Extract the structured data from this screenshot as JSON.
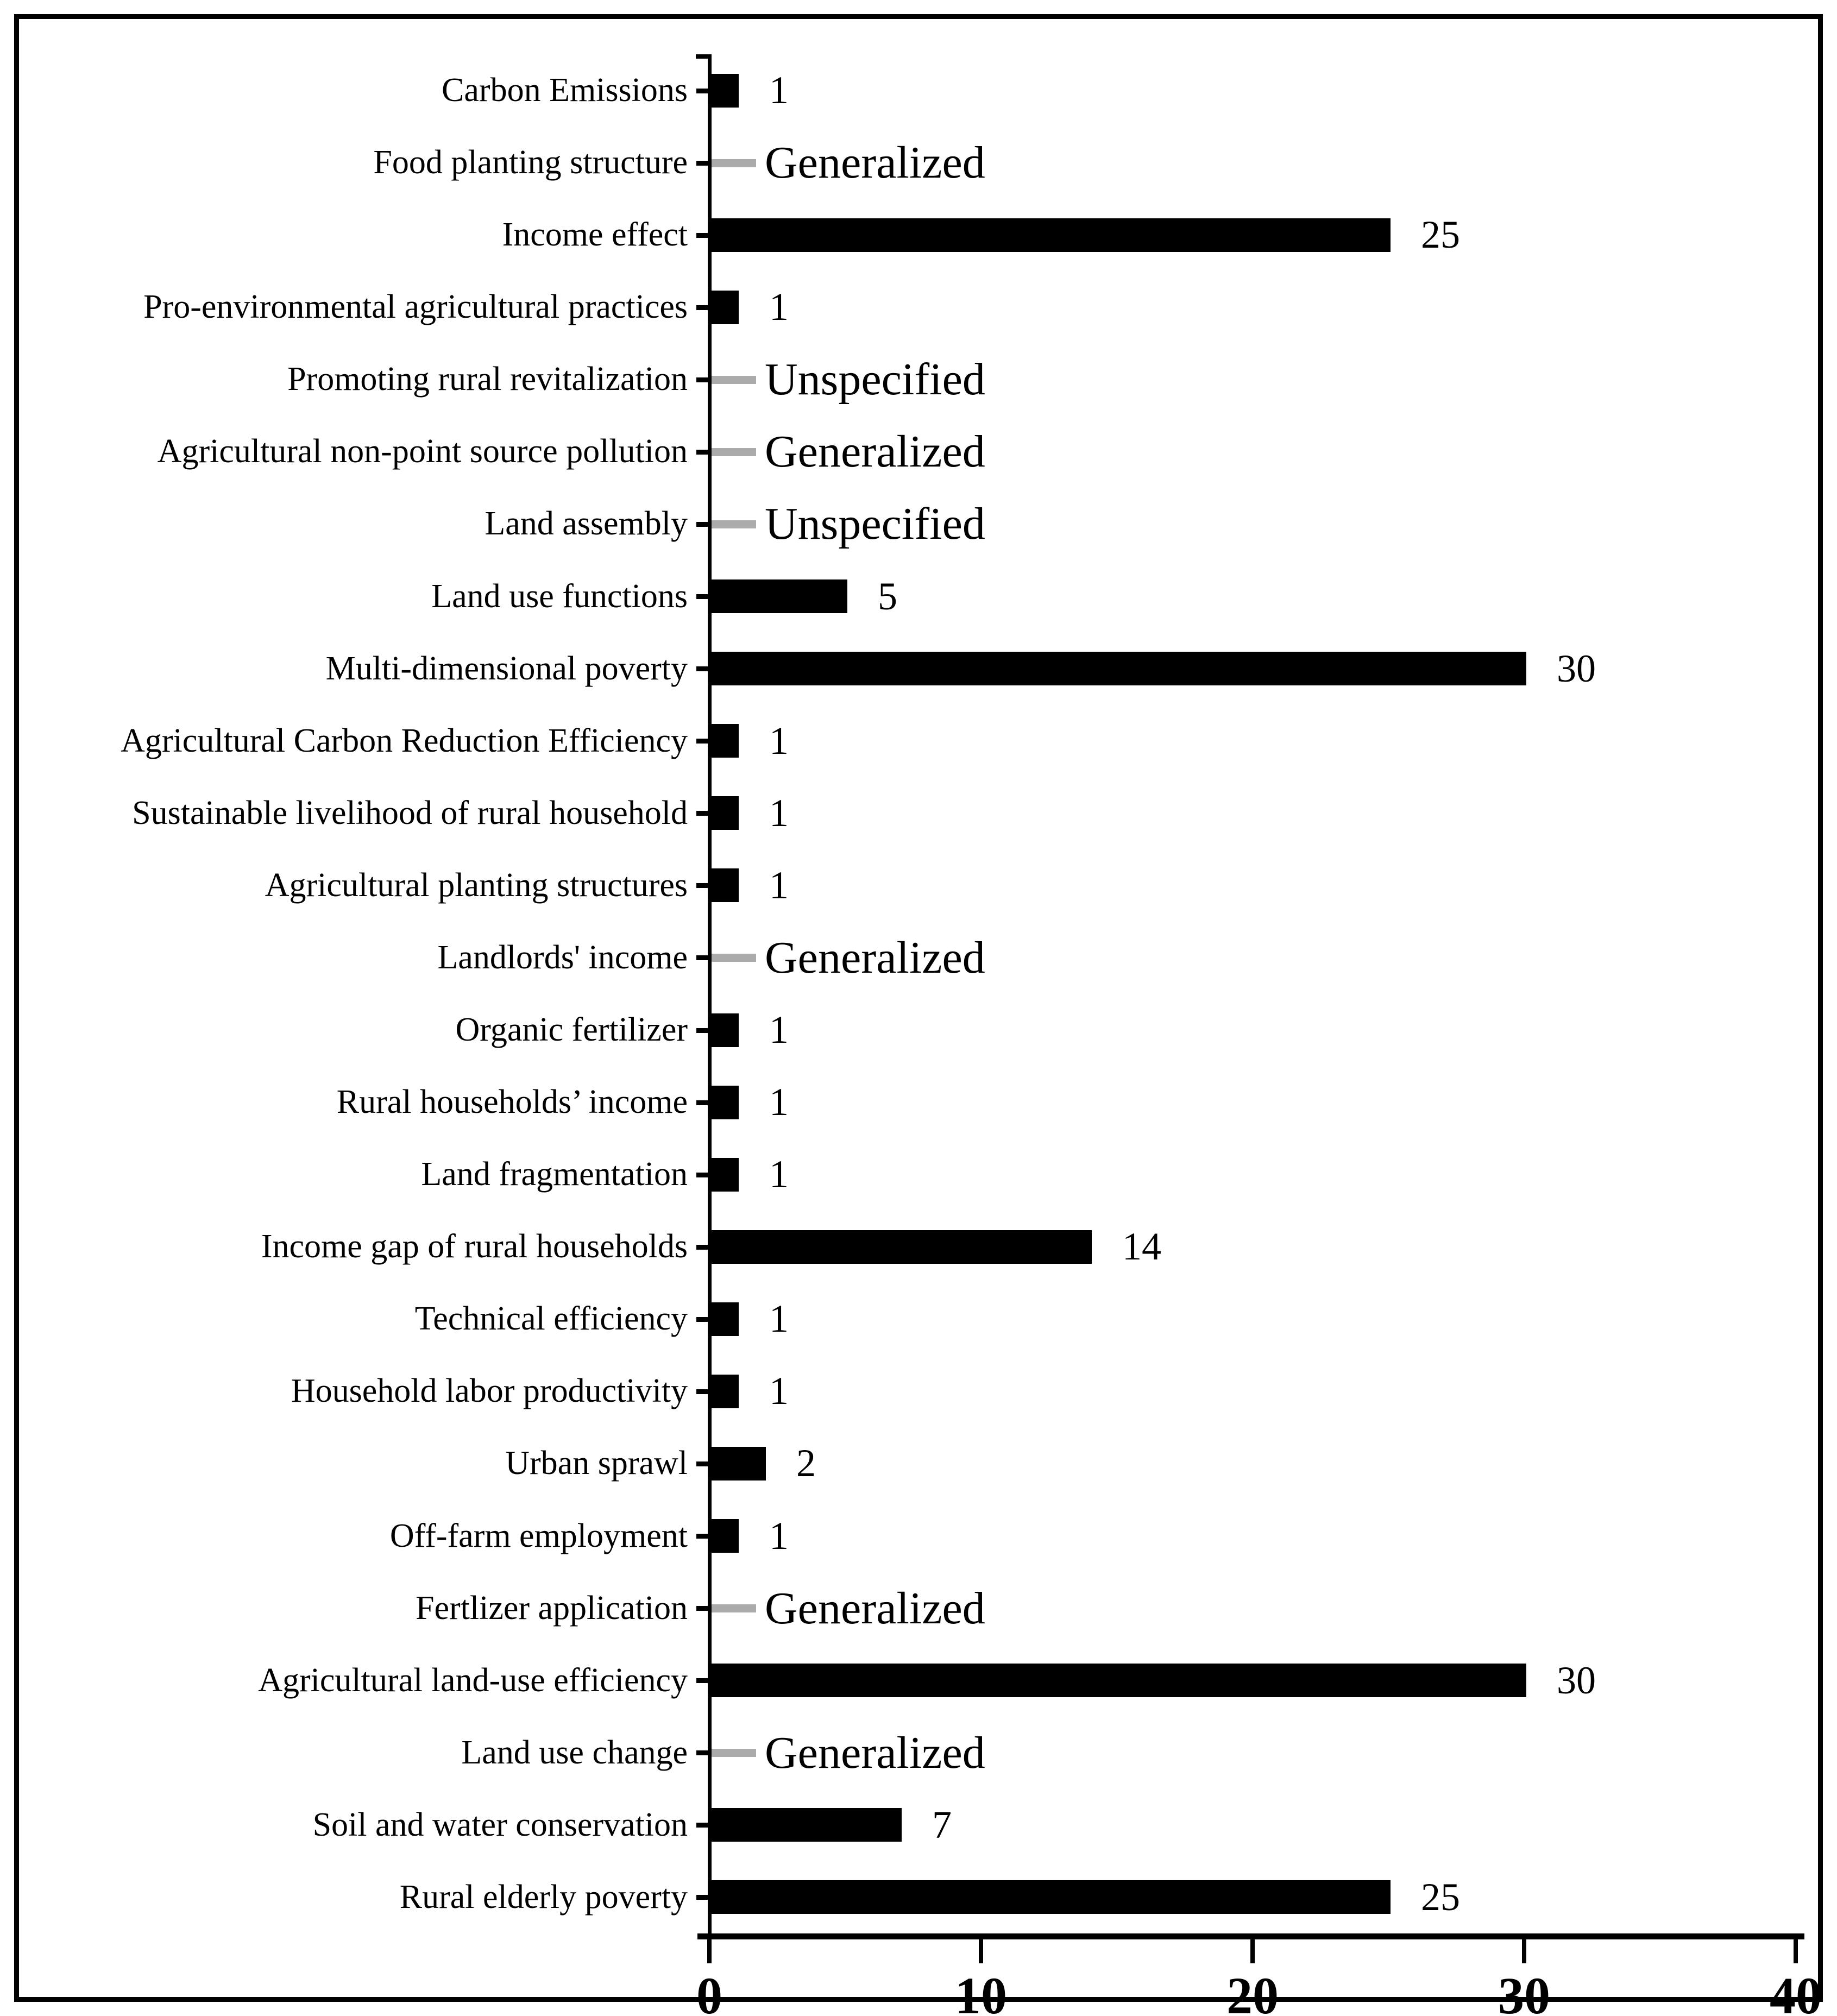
{
  "chart_data": {
    "type": "bar",
    "orientation": "horizontal",
    "title": "",
    "xlabel": "",
    "ylabel": "",
    "xlim": [
      0,
      40
    ],
    "x_ticks": [
      0,
      10,
      20,
      30,
      40
    ],
    "grid": false,
    "legend": false,
    "bar_color": "#000000",
    "placeholder_dash_color": "#ababab",
    "categories": [
      "Carbon Emissions",
      "Food planting structure",
      "Income effect",
      "Pro-environmental agricultural practices",
      "Promoting rural revitalization",
      "Agricultural non-point source pollution",
      "Land assembly",
      "Land use functions",
      "Multi-dimensional poverty",
      "Agricultural Carbon Reduction Efficiency",
      "Sustainable livelihood of rural household",
      "Agricultural planting structures",
      "Landlords' income",
      "Organic fertilizer",
      "Rural households’ income",
      "Land fragmentation",
      "Income gap of rural households",
      "Technical efficiency",
      "Household labor productivity",
      "Urban sprawl",
      "Off-farm employment",
      "Fertlizer application",
      "Agricultural land-use efficiency",
      "Land use change",
      "Soil and water conservation",
      "Rural elderly poverty"
    ],
    "values": [
      1,
      "Generalized",
      25,
      1,
      "Unspecified",
      "Generalized",
      "Unspecified",
      5,
      30,
      1,
      1,
      1,
      "Generalized",
      1,
      1,
      1,
      14,
      1,
      1,
      2,
      1,
      "Generalized",
      30,
      "Generalized",
      7,
      25
    ]
  }
}
